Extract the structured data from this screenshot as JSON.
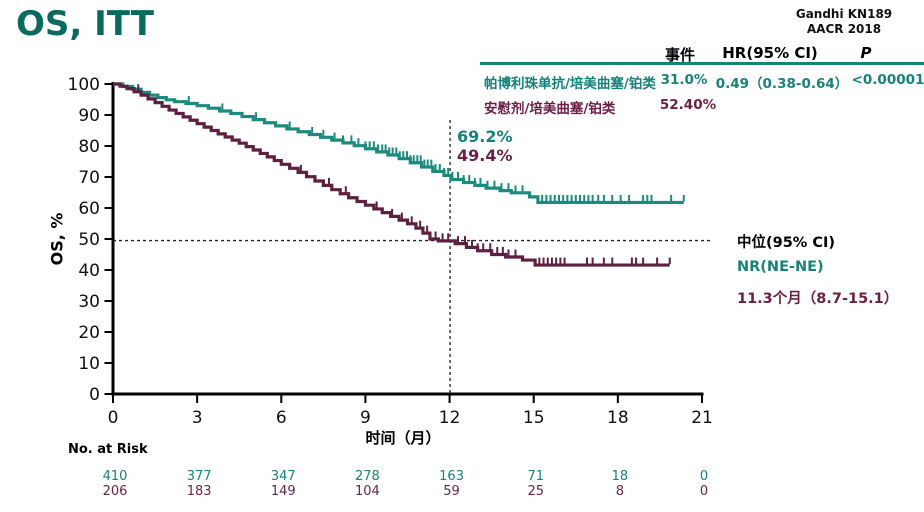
{
  "title": "OS, ITT",
  "title_color": "#0b6a5e",
  "source": {
    "line1": "Gandhi KN189",
    "line2": "AACR 2018"
  },
  "colors": {
    "pembro_text": "#17827a",
    "placebo_text": "#6b1f45",
    "pembro_curve": "#1d8a7e",
    "placebo_curve": "#5c2140",
    "rule": "#17827a",
    "axis": "#000000"
  },
  "summary_table": {
    "headers": {
      "events": "事件",
      "hr": "HR(95% CI)",
      "p": "P"
    },
    "rows": [
      {
        "label": "帕博利珠单抗/培美曲塞/铂类",
        "events": "31.0%",
        "hr": "0.49（0.38-0.64）",
        "p": "<0.00001"
      },
      {
        "label": "安慰剂/培美曲塞/铂类",
        "events": "52.40%",
        "hr": "",
        "p": ""
      }
    ]
  },
  "annotations": {
    "rate_pembro": "69.2%",
    "rate_placebo": "49.4%",
    "median_header": "中位(95% CI)",
    "median_pembro": "NR(NE-NE)",
    "median_placebo": "11.3个月（8.7-15.1）"
  },
  "chart_data": {
    "type": "line",
    "subtype": "kaplan-meier",
    "title": "OS, ITT",
    "xlabel": "时间（月）",
    "ylabel": "OS, %",
    "xlim": [
      0,
      21
    ],
    "ylim": [
      0,
      100
    ],
    "x_ticks": [
      0,
      3,
      6,
      9,
      12,
      15,
      18,
      21
    ],
    "y_ticks": [
      0,
      10,
      20,
      30,
      40,
      50,
      60,
      70,
      80,
      90,
      100
    ],
    "grid": false,
    "reference_lines": {
      "vline": {
        "x": 12,
        "pct_top": 88.4,
        "pct_bottom": 0
      },
      "hline": {
        "pct": 49.5,
        "x_start": 0,
        "x_end": 21.35
      }
    },
    "series": [
      {
        "name": "帕博利珠单抗/培美曲塞/铂类",
        "color": "#1d8a7e",
        "rate_at_12mo": 69.2,
        "median": "NR (NE-NE)",
        "points": [
          [
            0,
            100
          ],
          [
            0.35,
            99.2
          ],
          [
            0.7,
            98.3
          ],
          [
            1.0,
            97.3
          ],
          [
            1.3,
            96.4
          ],
          [
            1.6,
            95.6
          ],
          [
            1.9,
            94.9
          ],
          [
            2.2,
            94.3
          ],
          [
            2.6,
            93.7
          ],
          [
            3.0,
            93.0
          ],
          [
            3.4,
            92.2
          ],
          [
            3.8,
            91.3
          ],
          [
            4.2,
            90.5
          ],
          [
            4.6,
            89.5
          ],
          [
            5.0,
            88.5
          ],
          [
            5.4,
            87.5
          ],
          [
            5.8,
            86.5
          ],
          [
            6.2,
            85.5
          ],
          [
            6.6,
            84.6
          ],
          [
            7.0,
            83.7
          ],
          [
            7.4,
            82.8
          ],
          [
            7.8,
            81.9
          ],
          [
            8.2,
            81.0
          ],
          [
            8.6,
            80.1
          ],
          [
            9.0,
            79.1
          ],
          [
            9.4,
            78.1
          ],
          [
            9.8,
            77.1
          ],
          [
            10.2,
            75.9
          ],
          [
            10.6,
            74.6
          ],
          [
            11.0,
            73.2
          ],
          [
            11.4,
            71.8
          ],
          [
            11.8,
            70.5
          ],
          [
            12.05,
            69.2
          ],
          [
            12.5,
            68.2
          ],
          [
            12.9,
            67.3
          ],
          [
            13.3,
            66.4
          ],
          [
            13.8,
            65.6
          ],
          [
            14.2,
            64.9
          ],
          [
            14.85,
            63.6
          ],
          [
            15.15,
            61.8
          ],
          [
            20.35,
            61.8
          ]
        ],
        "censor_times": [
          2.7,
          3.9,
          5.1,
          6.3,
          7.1,
          7.5,
          7.9,
          8.2,
          8.5,
          8.75,
          9.0,
          9.15,
          9.3,
          9.45,
          9.6,
          9.72,
          9.85,
          9.97,
          10.1,
          10.22,
          10.35,
          10.48,
          10.6,
          10.72,
          10.85,
          10.97,
          11.1,
          11.22,
          11.35,
          11.5,
          11.65,
          11.8,
          11.95,
          12.1,
          12.3,
          12.5,
          12.7,
          12.9,
          13.1,
          13.35,
          13.6,
          13.85,
          14.1,
          14.35,
          14.6,
          15.3,
          15.45,
          15.6,
          15.75,
          15.9,
          16.05,
          16.2,
          16.35,
          16.5,
          16.65,
          16.8,
          16.95,
          17.1,
          17.3,
          17.5,
          17.8,
          18.1,
          18.4,
          18.9,
          19.05,
          19.2,
          19.9,
          20.35
        ]
      },
      {
        "name": "安慰剂/培美曲塞/铂类",
        "color": "#5c2140",
        "rate_at_12mo": 49.4,
        "median": "11.3 (8.7-15.1)",
        "points": [
          [
            0,
            100
          ],
          [
            0.25,
            99.3
          ],
          [
            0.5,
            98.5
          ],
          [
            0.75,
            97.5
          ],
          [
            1.0,
            96.4
          ],
          [
            1.25,
            95.2
          ],
          [
            1.5,
            94.0
          ],
          [
            1.75,
            92.8
          ],
          [
            2.0,
            91.6
          ],
          [
            2.25,
            90.5
          ],
          [
            2.5,
            89.4
          ],
          [
            2.75,
            88.3
          ],
          [
            3.0,
            87.2
          ],
          [
            3.25,
            86.1
          ],
          [
            3.5,
            85.0
          ],
          [
            3.75,
            83.9
          ],
          [
            4.0,
            82.9
          ],
          [
            4.25,
            81.9
          ],
          [
            4.5,
            80.9
          ],
          [
            4.75,
            79.8
          ],
          [
            5.0,
            78.7
          ],
          [
            5.25,
            77.6
          ],
          [
            5.5,
            76.5
          ],
          [
            5.75,
            75.3
          ],
          [
            6.0,
            74.1
          ],
          [
            6.3,
            72.8
          ],
          [
            6.6,
            71.5
          ],
          [
            6.9,
            70.1
          ],
          [
            7.2,
            68.7
          ],
          [
            7.5,
            67.3
          ],
          [
            7.8,
            65.9
          ],
          [
            8.1,
            64.6
          ],
          [
            8.4,
            63.3
          ],
          [
            8.7,
            62.1
          ],
          [
            9.0,
            60.9
          ],
          [
            9.3,
            59.7
          ],
          [
            9.6,
            58.5
          ],
          [
            9.9,
            57.3
          ],
          [
            10.2,
            56.1
          ],
          [
            10.5,
            54.9
          ],
          [
            10.8,
            53.5
          ],
          [
            11.05,
            51.9
          ],
          [
            11.3,
            50.0
          ],
          [
            11.6,
            49.4
          ],
          [
            12.2,
            48.5
          ],
          [
            12.6,
            47.3
          ],
          [
            13.0,
            46.2
          ],
          [
            13.5,
            45.0
          ],
          [
            14.0,
            44.2
          ],
          [
            14.6,
            43.2
          ],
          [
            15.05,
            41.6
          ],
          [
            19.85,
            41.6
          ]
        ],
        "censor_times": [
          0.9,
          6.7,
          7.7,
          8.3,
          9.4,
          9.95,
          10.3,
          10.65,
          10.95,
          11.2,
          11.5,
          11.75,
          11.95,
          12.3,
          12.55,
          12.8,
          13.0,
          13.2,
          13.45,
          13.7,
          13.9,
          14.1,
          14.35,
          15.2,
          15.35,
          15.5,
          15.65,
          15.8,
          15.95,
          16.1,
          16.9,
          17.1,
          17.5,
          17.8,
          18.5,
          18.65,
          18.9,
          19.4,
          19.85
        ]
      }
    ]
  },
  "risk_table": {
    "label": "No. at Risk",
    "x": [
      0,
      3,
      6,
      9,
      12,
      15,
      18,
      21
    ],
    "rows": [
      {
        "name": "pembrolizumab-arm",
        "color": "#17827a",
        "values": [
          "410",
          "377",
          "347",
          "278",
          "163",
          "71",
          "18",
          "0"
        ]
      },
      {
        "name": "placebo-arm",
        "color": "#6b1f45",
        "values": [
          "206",
          "183",
          "149",
          "104",
          "59",
          "25",
          "8",
          "0"
        ]
      }
    ]
  }
}
